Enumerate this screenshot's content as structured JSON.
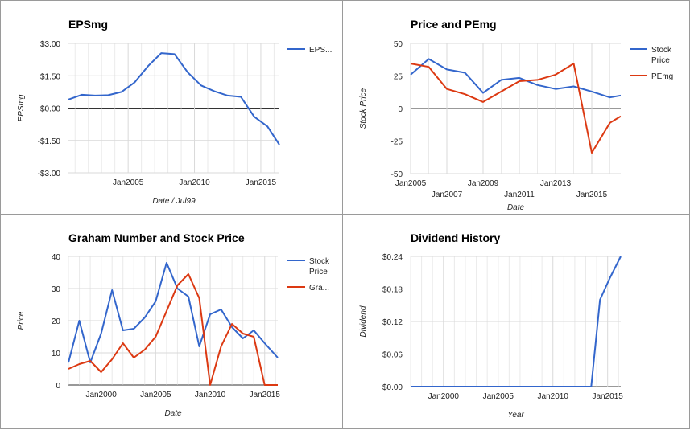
{
  "chart_data": [
    {
      "type": "line",
      "title": "EPSmg",
      "xlabel": "Date / Jul99",
      "ylabel": "EPSmg",
      "y_ticks": [
        "$3.00",
        "$1.50",
        "$0.00",
        "-$1.50",
        "-$3.00"
      ],
      "y_tick_values": [
        3,
        1.5,
        0,
        -1.5,
        -3
      ],
      "x_ticks": [
        "Jan2005",
        "Jan2010",
        "Jan2015"
      ],
      "x_tick_values": [
        2005,
        2010,
        2015
      ],
      "xlim": [
        2000.5,
        2016.4
      ],
      "ylim": [
        -3,
        3
      ],
      "series": [
        {
          "name": "EPS...",
          "color": "#3366cc",
          "x": [
            2000.5,
            2001.5,
            2002.5,
            2003.5,
            2004.5,
            2005.5,
            2006.5,
            2007.5,
            2008.5,
            2009.5,
            2010.5,
            2011.5,
            2012.5,
            2013.5,
            2014.5,
            2015.5,
            2016.4
          ],
          "values": [
            0.4,
            0.62,
            0.58,
            0.6,
            0.75,
            1.2,
            1.95,
            2.55,
            2.5,
            1.65,
            1.05,
            0.78,
            0.58,
            0.52,
            -0.4,
            -0.85,
            -1.7
          ]
        }
      ]
    },
    {
      "type": "line",
      "title": "Price and PEmg",
      "xlabel": "Date",
      "ylabel": "Stock Price",
      "y_ticks": [
        "50",
        "25",
        "0",
        "-25",
        "-50"
      ],
      "y_tick_values": [
        50,
        25,
        0,
        -25,
        -50
      ],
      "x_ticks_upper": [
        "Jan2005",
        "Jan2009",
        "Jan2013"
      ],
      "x_ticks_upper_values": [
        2005,
        2009,
        2013
      ],
      "x_ticks_lower": [
        "Jan2007",
        "Jan2011",
        "Jan2015"
      ],
      "x_ticks_lower_values": [
        2007,
        2011,
        2015
      ],
      "xlim": [
        2005,
        2016.6
      ],
      "ylim": [
        -50,
        50
      ],
      "series": [
        {
          "name": "Stock Price",
          "color": "#3366cc",
          "x": [
            2005,
            2006,
            2007,
            2008,
            2009,
            2010,
            2011,
            2012,
            2013,
            2014,
            2015,
            2016,
            2016.6
          ],
          "values": [
            26,
            38,
            30,
            27.5,
            12,
            22,
            23.5,
            18,
            15,
            17,
            13,
            8.5,
            10
          ]
        },
        {
          "name": "PEmg",
          "color": "#dc3912",
          "x": [
            2005,
            2006,
            2007,
            2008,
            2009,
            2010,
            2011,
            2012,
            2013,
            2014,
            2015,
            2016,
            2016.6
          ],
          "values": [
            34.5,
            32,
            15,
            11,
            5,
            13,
            21,
            22,
            26,
            34.5,
            -34,
            -11,
            -6
          ]
        }
      ]
    },
    {
      "type": "line",
      "title": "Graham Number and Stock Price",
      "xlabel": "Date",
      "ylabel": "Price",
      "y_ticks": [
        "40",
        "30",
        "20",
        "10",
        "0"
      ],
      "y_tick_values": [
        40,
        30,
        20,
        10,
        0
      ],
      "x_ticks": [
        "Jan2000",
        "Jan2005",
        "Jan2010",
        "Jan2015"
      ],
      "x_tick_values": [
        2000,
        2005,
        2010,
        2015
      ],
      "xlim": [
        1997,
        2016.2
      ],
      "ylim": [
        0,
        40
      ],
      "series": [
        {
          "name": "Stock Price",
          "color": "#3366cc",
          "x": [
            1997,
            1998,
            1999,
            2000,
            2001,
            2002,
            2003,
            2004,
            2005,
            2006,
            2007,
            2008,
            2009,
            2010,
            2011,
            2012,
            2013,
            2014,
            2015,
            2016.2
          ],
          "values": [
            7,
            20,
            7,
            16,
            29.5,
            17,
            17.5,
            21,
            26,
            38,
            30,
            27.5,
            12,
            22,
            23.5,
            18,
            14.5,
            17,
            13,
            8.5
          ]
        },
        {
          "name": "Gra...",
          "color": "#dc3912",
          "x": [
            1997,
            1998,
            1999,
            2000,
            2001,
            2002,
            2003,
            2004,
            2005,
            2006,
            2007,
            2008,
            2009,
            2010,
            2011,
            2012,
            2013,
            2014,
            2015,
            2016.2
          ],
          "values": [
            5,
            6.5,
            7.5,
            4,
            8,
            13,
            8.5,
            11,
            15,
            23,
            31,
            34.5,
            27,
            0,
            12,
            19,
            16,
            15,
            0,
            0
          ]
        }
      ]
    },
    {
      "type": "line",
      "title": "Dividend History",
      "xlabel": "Year",
      "ylabel": "Dividend",
      "y_ticks": [
        "$0.24",
        "$0.18",
        "$0.12",
        "$0.06",
        "$0.00"
      ],
      "y_tick_values": [
        0.24,
        0.18,
        0.12,
        0.06,
        0
      ],
      "x_ticks": [
        "Jan2000",
        "Jan2005",
        "Jan2010",
        "Jan2015"
      ],
      "x_tick_values": [
        2000,
        2005,
        2010,
        2015
      ],
      "xlim": [
        1997,
        2016.2
      ],
      "ylim": [
        0,
        0.24
      ],
      "series": [
        {
          "name": "",
          "color": "#3366cc",
          "x": [
            1997,
            2013.5,
            2014.3,
            2015.2,
            2016.2
          ],
          "values": [
            0,
            0,
            0.16,
            0.2,
            0.24
          ]
        }
      ]
    }
  ]
}
